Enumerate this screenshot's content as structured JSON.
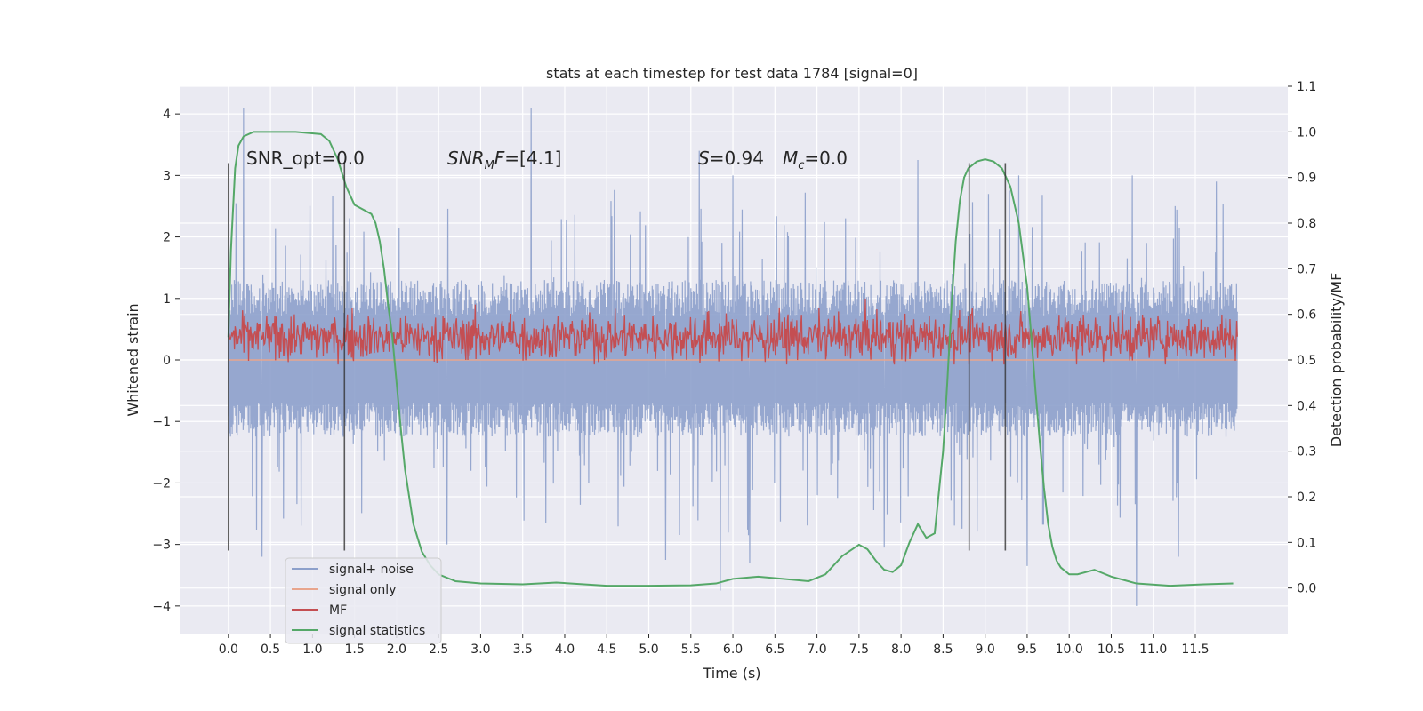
{
  "chart_data": {
    "type": "line",
    "title": "stats at each timestep for test data 1784 [signal=0]",
    "xlabel": "Time (s)",
    "ylabel": "Whitened strain",
    "y2label": "Detection probability/MF",
    "xlim": [
      -0.58,
      12.6
    ],
    "ylim": [
      -4.45,
      4.45
    ],
    "y2lim": [
      -0.1,
      1.1
    ],
    "xticks": [
      "0.0",
      "0.5",
      "1.0",
      "1.5",
      "2.0",
      "2.5",
      "3.0",
      "3.5",
      "4.0",
      "4.5",
      "5.0",
      "5.5",
      "6.0",
      "6.5",
      "7.0",
      "7.5",
      "8.0",
      "8.5",
      "9.0",
      "9.5",
      "10.0",
      "10.5",
      "11.0",
      "11.5"
    ],
    "yticks": [
      "4",
      "3",
      "2",
      "1",
      "0",
      "−1",
      "−2",
      "−3",
      "−4"
    ],
    "y2ticks": [
      "1.1",
      "1.0",
      "0.9",
      "0.8",
      "0.7",
      "0.6",
      "0.5",
      "0.4",
      "0.3",
      "0.2",
      "0.1",
      "0.0"
    ],
    "grid": true,
    "annotations": {
      "snr_opt": "SNR_opt=0.0",
      "snr_mf_sym": "SNR",
      "snr_mf_sub": "M",
      "snr_mf_tail": "F",
      "snr_mf_val": "=[4.1]",
      "s_sym": "S",
      "s_val": "=0.94",
      "mc_sym": "M",
      "mc_sub": "c",
      "mc_val": "=0.0"
    },
    "vertical_lines_x": [
      0.0,
      1.38,
      8.81,
      9.24
    ],
    "vertical_lines_range": [
      -3.1,
      3.2
    ],
    "series": [
      {
        "name": "signal+ noise",
        "color": "#8da0cb",
        "axis": "left",
        "x_range": [
          0.0,
          12.0
        ],
        "typical_range": [
          -1.25,
          1.3
        ],
        "peaks_up": [
          [
            0.18,
            4.1
          ],
          [
            3.6,
            4.1
          ],
          [
            5.6,
            3.4
          ],
          [
            6.0,
            3.0
          ],
          [
            8.2,
            3.25
          ],
          [
            9.4,
            3.0
          ],
          [
            10.75,
            3.0
          ],
          [
            11.75,
            2.9
          ]
        ],
        "peaks_down": [
          [
            0.4,
            -3.2
          ],
          [
            5.85,
            -3.75
          ],
          [
            6.2,
            -3.3
          ],
          [
            9.5,
            -3.35
          ],
          [
            10.8,
            -4.0
          ],
          [
            11.3,
            -3.2
          ],
          [
            7.8,
            -3.05
          ],
          [
            5.2,
            -3.25
          ],
          [
            2.6,
            -3.0
          ]
        ]
      },
      {
        "name": "signal only",
        "color": "#e8a58d",
        "axis": "left",
        "x": [
          0.0,
          12.0
        ],
        "y": [
          0.0,
          0.0
        ]
      },
      {
        "name": "MF",
        "color": "#c44e52",
        "axis": "right",
        "x_range": [
          0.0,
          12.0
        ],
        "typical_range": [
          0.5,
          0.6
        ],
        "max": 0.66,
        "min": 0.49
      },
      {
        "name": "signal statistics",
        "color": "#55a868",
        "axis": "right",
        "x": [
          0.0,
          0.03,
          0.08,
          0.12,
          0.18,
          0.3,
          0.5,
          0.8,
          1.1,
          1.2,
          1.3,
          1.4,
          1.5,
          1.6,
          1.7,
          1.75,
          1.8,
          1.85,
          1.9,
          1.95,
          2.0,
          2.05,
          2.1,
          2.2,
          2.3,
          2.4,
          2.5,
          2.7,
          3.0,
          3.5,
          3.9,
          4.5,
          5.0,
          5.5,
          5.8,
          6.0,
          6.3,
          6.6,
          6.9,
          7.1,
          7.3,
          7.5,
          7.6,
          7.7,
          7.8,
          7.9,
          8.0,
          8.1,
          8.2,
          8.3,
          8.4,
          8.5,
          8.55,
          8.6,
          8.65,
          8.7,
          8.75,
          8.8,
          8.9,
          9.0,
          9.1,
          9.2,
          9.3,
          9.4,
          9.5,
          9.55,
          9.6,
          9.65,
          9.7,
          9.75,
          9.8,
          9.85,
          9.9,
          10.0,
          10.1,
          10.3,
          10.5,
          10.8,
          11.2,
          11.6,
          11.95
        ],
        "y": [
          0.55,
          0.74,
          0.92,
          0.97,
          0.99,
          1.0,
          1.0,
          1.0,
          0.995,
          0.98,
          0.94,
          0.88,
          0.84,
          0.83,
          0.82,
          0.8,
          0.76,
          0.7,
          0.62,
          0.55,
          0.45,
          0.35,
          0.26,
          0.14,
          0.08,
          0.05,
          0.03,
          0.015,
          0.01,
          0.008,
          0.012,
          0.005,
          0.005,
          0.006,
          0.01,
          0.02,
          0.025,
          0.02,
          0.015,
          0.03,
          0.07,
          0.095,
          0.085,
          0.06,
          0.04,
          0.035,
          0.05,
          0.1,
          0.14,
          0.11,
          0.12,
          0.3,
          0.45,
          0.62,
          0.76,
          0.85,
          0.9,
          0.92,
          0.935,
          0.94,
          0.935,
          0.92,
          0.88,
          0.8,
          0.66,
          0.55,
          0.43,
          0.32,
          0.22,
          0.14,
          0.09,
          0.06,
          0.045,
          0.03,
          0.03,
          0.04,
          0.025,
          0.01,
          0.005,
          0.008,
          0.01
        ]
      }
    ],
    "legend": {
      "placement": "lower-left",
      "entries": [
        "signal+ noise",
        "signal only",
        "MF",
        "signal statistics"
      ]
    }
  }
}
